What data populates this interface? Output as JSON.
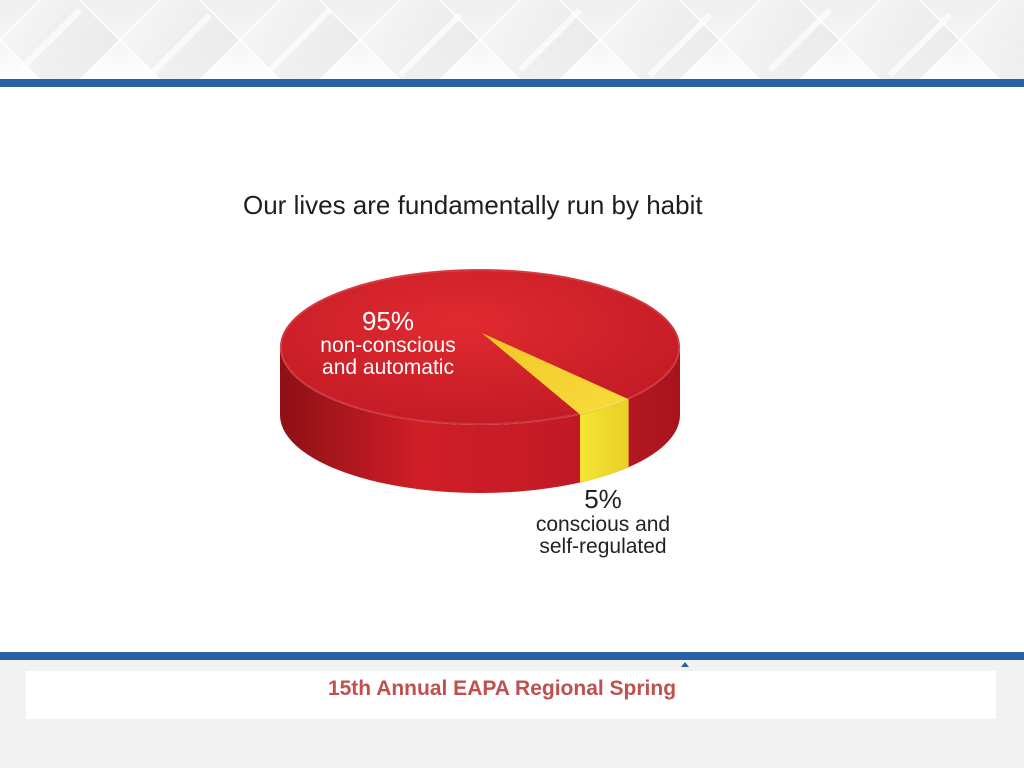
{
  "slide": {
    "title": "Our lives are fundamentally run by habit",
    "footer_text": "15th Annual EAPA Regional Spring"
  },
  "colors": {
    "accent_blue": "#2961a8",
    "pie_red": "#d31f2d",
    "pie_yellow": "#f2dd2c",
    "footer_red": "#c0504d"
  },
  "chart_data": {
    "type": "pie",
    "title": "Our lives are fundamentally run by habit",
    "slices": [
      {
        "label_line1": "non-conscious",
        "label_line2": "and automatic",
        "value": 95,
        "value_text": "95%",
        "color": "#d31f2d"
      },
      {
        "label_line1": "conscious and",
        "label_line2": "self-regulated",
        "value": 5,
        "value_text": "5%",
        "color": "#f2dd2c"
      }
    ]
  }
}
